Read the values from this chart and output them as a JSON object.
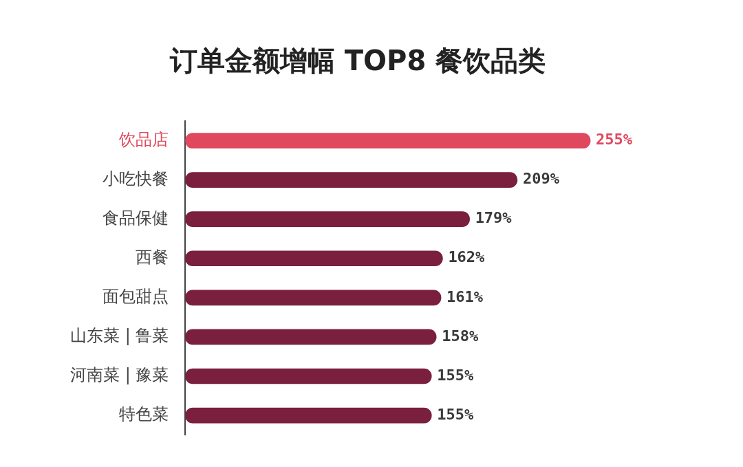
{
  "chart_data": {
    "type": "bar",
    "orientation": "horizontal",
    "title": "订单金额增幅 TOP8 餐饮品类",
    "categories": [
      "饮品店",
      "小吃快餐",
      "食品保健",
      "西餐",
      "面包甜点",
      "山东菜 | 鲁菜",
      "河南菜 | 豫菜",
      "特色菜"
    ],
    "values": [
      255,
      209,
      179,
      162,
      161,
      158,
      155,
      155
    ],
    "value_labels": [
      "255%",
      "209%",
      "179%",
      "162%",
      "161%",
      "158%",
      "155%",
      "155%"
    ],
    "colors": [
      "#e0485e",
      "#7a1f3d",
      "#7a1f3d",
      "#7a1f3d",
      "#7a1f3d",
      "#7a1f3d",
      "#7a1f3d",
      "#7a1f3d"
    ],
    "tick_labels": "y"
  }
}
